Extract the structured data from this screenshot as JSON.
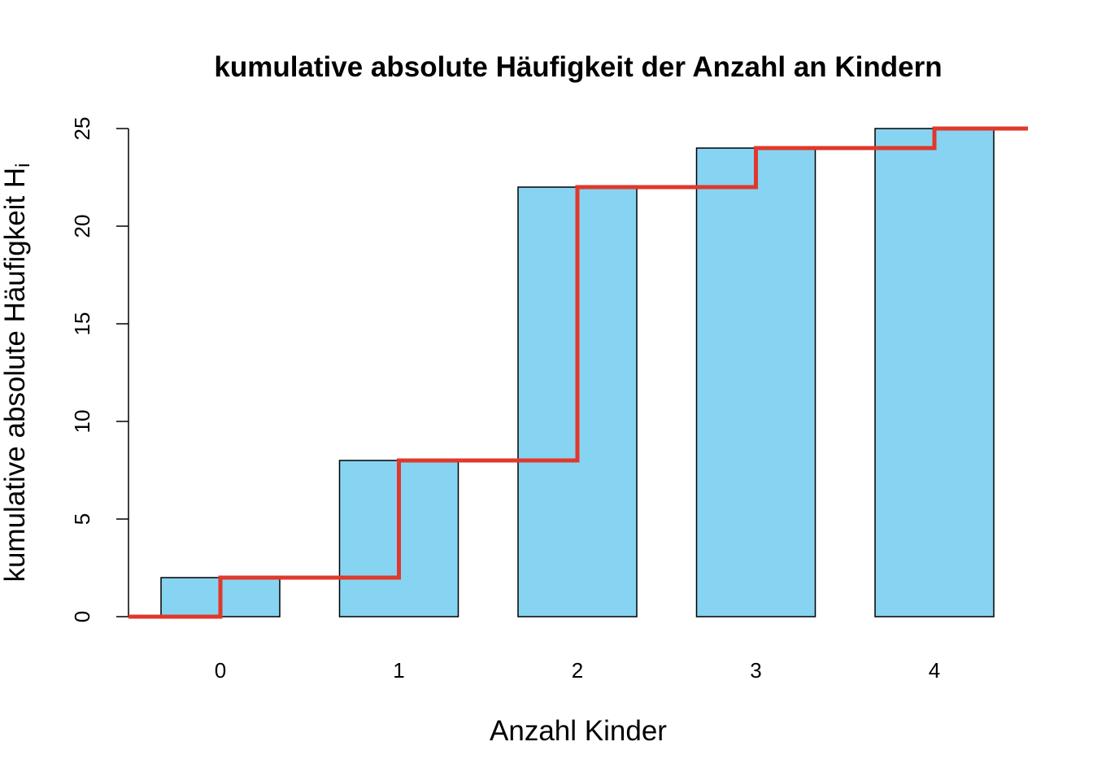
{
  "chart_data": {
    "type": "bar",
    "title": "kumulative absolute Häufigkeit der Anzahl an Kindern",
    "xlabel": "Anzahl Kinder",
    "ylabel": {
      "main": "kumulative absolute Häufigkeit H",
      "subscript": "i"
    },
    "categories": [
      "0",
      "1",
      "2",
      "3",
      "4"
    ],
    "values": [
      2,
      8,
      22,
      24,
      25
    ],
    "yticks": [
      "0",
      "5",
      "10",
      "15",
      "20",
      "25"
    ],
    "ylim": [
      0,
      25
    ],
    "grid": false,
    "step_line": {
      "x": [
        -0.5,
        0,
        1,
        2,
        3,
        4,
        4.5
      ],
      "y": [
        0,
        2,
        8,
        22,
        24,
        25,
        25
      ]
    },
    "colors": {
      "bar_fill": "#87D3F2",
      "bar_stroke": "#000000",
      "step_line": "#E0392B"
    }
  }
}
